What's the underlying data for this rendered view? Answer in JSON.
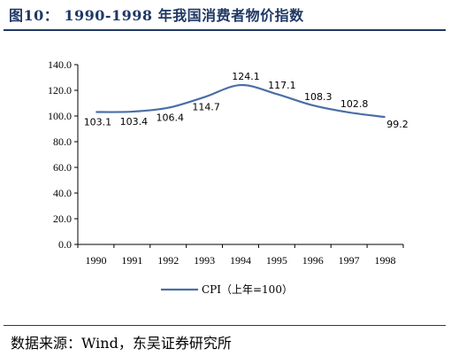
{
  "figure": {
    "title": "图10：  1990-1998 年我国消费者物价指数",
    "source": "数据来源：Wind，东吴证券研究所"
  },
  "colors": {
    "line": "#4a6fa5",
    "rule": "#1f3864"
  },
  "chart_data": {
    "type": "line",
    "categories": [
      "1990",
      "1991",
      "1992",
      "1993",
      "1994",
      "1995",
      "1996",
      "1997",
      "1998"
    ],
    "series": [
      {
        "name": "CPI（上年=100）",
        "values": [
          103.1,
          103.4,
          106.4,
          114.7,
          124.1,
          117.1,
          108.3,
          102.8,
          99.2
        ]
      }
    ],
    "data_labels": [
      "103.1",
      "103.4",
      "106.4",
      "114.7",
      "124.1",
      "117.1",
      "108.3",
      "102.8",
      "99.2"
    ],
    "y_ticks": [
      "0.0",
      "20.0",
      "40.0",
      "60.0",
      "80.0",
      "100.0",
      "120.0",
      "140.0"
    ],
    "ylim": [
      0,
      140
    ],
    "grid": false,
    "legend_position": "bottom",
    "line_style": "smooth"
  }
}
